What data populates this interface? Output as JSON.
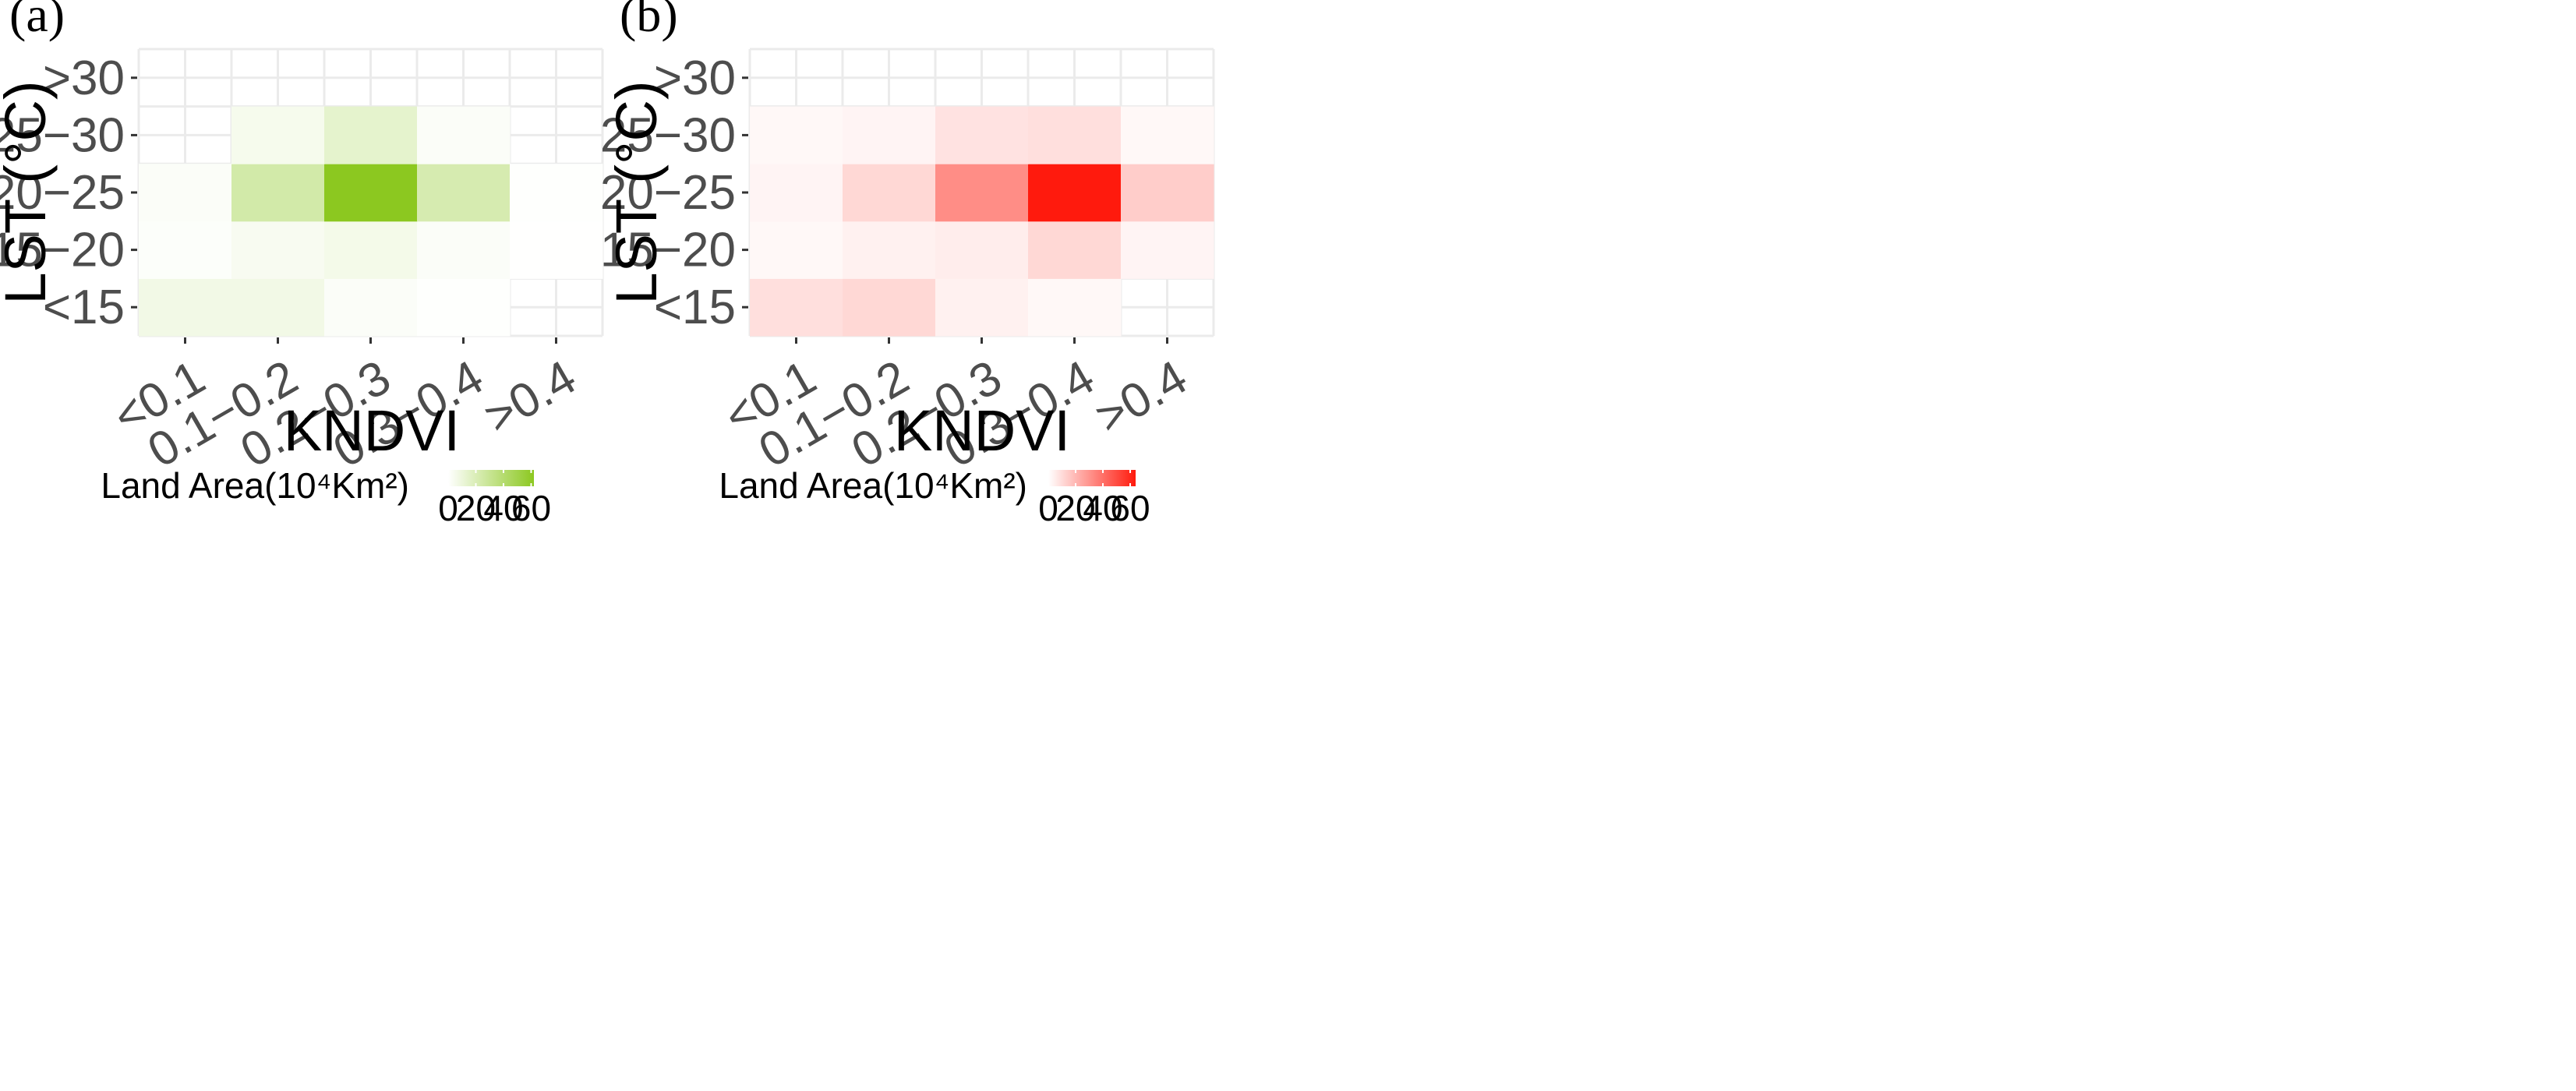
{
  "chart_data": [
    {
      "type": "heatmap",
      "panel_label": "(a)",
      "xlabel": "KNDVI",
      "ylabel": "LST (°C)",
      "x_categories": [
        "<0.1",
        "0.1−0.2",
        "0.2−0.3",
        "0.3−0.4",
        ">0.4"
      ],
      "y_categories": [
        "<15",
        "15−20",
        "20−25",
        "25−30",
        ">30"
      ],
      "values": [
        [
          7,
          7,
          2,
          0.5,
          null
        ],
        [
          1.5,
          4,
          6,
          2,
          0.2
        ],
        [
          2,
          24,
          62,
          22,
          0.5
        ],
        [
          null,
          5,
          14,
          2,
          null
        ],
        [
          null,
          null,
          null,
          null,
          null
        ]
      ],
      "color_low": "#ffffff",
      "color_high": "#8cc820",
      "legend": {
        "title": "Land Area(10⁴Km²)",
        "ticks": [
          0,
          20,
          40,
          60
        ],
        "tick_labels": [
          "0",
          "20",
          "40",
          "60"
        ],
        "range": [
          0,
          62
        ],
        "position": "bottom"
      }
    },
    {
      "type": "heatmap",
      "panel_label": "(b)",
      "xlabel": "KNDVI",
      "ylabel": "LST (°C)",
      "x_categories": [
        "<0.1",
        "0.1−0.2",
        "0.2−0.3",
        "0.3−0.4",
        ">0.4"
      ],
      "y_categories": [
        "<15",
        "15−20",
        "20−25",
        "25−30",
        ">30"
      ],
      "values": [
        [
          9,
          11,
          4,
          2,
          null
        ],
        [
          2,
          4,
          5,
          11,
          3
        ],
        [
          3,
          11,
          32,
          64,
          14
        ],
        [
          2,
          3,
          8,
          9,
          2
        ],
        [
          null,
          null,
          null,
          null,
          null
        ]
      ],
      "color_low": "#ffffff",
      "color_high": "#ff1a0d",
      "legend": {
        "title": "Land Area(10⁴Km²)",
        "ticks": [
          0,
          20,
          40,
          60
        ],
        "tick_labels": [
          "0",
          "20",
          "40",
          "60"
        ],
        "range": [
          0,
          64
        ],
        "position": "bottom"
      }
    }
  ]
}
